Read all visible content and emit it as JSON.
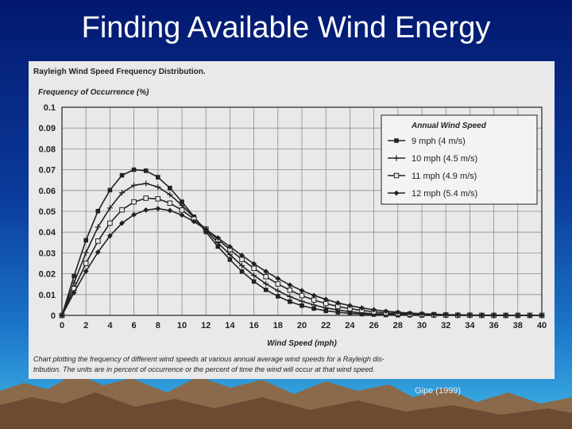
{
  "slide": {
    "title": "Finding Available Wind Energy",
    "caption": "Gipe (1999)"
  },
  "colors": {
    "background_top": "#03186e",
    "background_bottom": "#3fb6e6",
    "paper": "#e9e9e9",
    "ink": "#222222"
  },
  "chart_data": {
    "type": "line",
    "title": "Rayleigh Wind Speed Frequency Distribution.",
    "ylabel": "Frequency of Occurrence (%)",
    "xlabel": "Wind Speed (mph)",
    "xlim": [
      0,
      40
    ],
    "ylim": [
      0,
      0.1
    ],
    "grid": true,
    "x_ticks": [
      "0",
      "2",
      "4",
      "6",
      "8",
      "10",
      "12",
      "14",
      "16",
      "18",
      "20",
      "22",
      "24",
      "26",
      "28",
      "30",
      "32",
      "34",
      "36",
      "38",
      "40"
    ],
    "y_ticks": [
      "0",
      "0.01",
      "0.02",
      "0.03",
      "0.04",
      "0.05",
      "0.06",
      "0.07",
      "0.08",
      "0.09",
      "0.1"
    ],
    "legend_title": "Annual Wind Speed",
    "legend_position": "top-right",
    "footnote_line1": "Chart plotting the frequency of different wind speeds at various annual average wind speeds for a Rayleigh dis-",
    "footnote_line2": "tribution. The units are in percent of occurrence or the percent of time the wind will occur at that wind speed.",
    "x": [
      0,
      1,
      2,
      3,
      4,
      5,
      6,
      7,
      8,
      9,
      10,
      11,
      12,
      13,
      14,
      15,
      16,
      17,
      18,
      19,
      20,
      21,
      22,
      23,
      24,
      25,
      26,
      27,
      28,
      29,
      30,
      31,
      32,
      33,
      34,
      35,
      36,
      37,
      38,
      39,
      40
    ],
    "series": [
      {
        "name": "9 mph (4 m/s)",
        "marker": "square-filled",
        "values": [
          0,
          0.0189,
          0.0361,
          0.0501,
          0.0602,
          0.0673,
          0.07,
          0.0695,
          0.0664,
          0.0612,
          0.0546,
          0.0474,
          0.0401,
          0.0331,
          0.0268,
          0.0211,
          0.0163,
          0.0123,
          0.0092,
          0.0066,
          0.0047,
          0.0033,
          0.0022,
          0.0015,
          0.001,
          0.0006,
          0.0004,
          0.0002,
          0.0001,
          0.0001,
          0,
          0,
          0,
          0,
          0,
          0,
          0,
          0,
          0,
          0,
          0
        ]
      },
      {
        "name": "10 mph (4.5 m/s)",
        "marker": "plus",
        "values": [
          0,
          0.0156,
          0.0301,
          0.0424,
          0.0516,
          0.0589,
          0.0625,
          0.0634,
          0.0617,
          0.058,
          0.0529,
          0.0471,
          0.041,
          0.0349,
          0.0292,
          0.0239,
          0.0192,
          0.0152,
          0.0118,
          0.009,
          0.0068,
          0.005,
          0.0036,
          0.0026,
          0.0018,
          0.0012,
          0.0008,
          0.0006,
          0.0004,
          0.0002,
          0.0001,
          0.0001,
          0.0001,
          0,
          0,
          0,
          0,
          0,
          0,
          0,
          0
        ]
      },
      {
        "name": "11 mph (4.9 m/s)",
        "marker": "square-open",
        "values": [
          0,
          0.0129,
          0.025,
          0.0357,
          0.0443,
          0.0507,
          0.0545,
          0.0563,
          0.056,
          0.0539,
          0.0506,
          0.0463,
          0.0415,
          0.0365,
          0.0316,
          0.0269,
          0.0226,
          0.0186,
          0.0151,
          0.0121,
          0.0095,
          0.0074,
          0.0057,
          0.0043,
          0.0032,
          0.0024,
          0.0017,
          0.0012,
          0.0009,
          0.0006,
          0.0004,
          0.0003,
          0.0002,
          0.0001,
          0.0001,
          0,
          0,
          0,
          0,
          0,
          0
        ]
      },
      {
        "name": "12 mph (5.4 m/s)",
        "marker": "diamond",
        "values": [
          0,
          0.0109,
          0.0212,
          0.0304,
          0.0382,
          0.0443,
          0.0484,
          0.0506,
          0.0513,
          0.0504,
          0.0482,
          0.0451,
          0.0413,
          0.0372,
          0.033,
          0.0288,
          0.0248,
          0.0211,
          0.0177,
          0.0146,
          0.0119,
          0.0096,
          0.0077,
          0.006,
          0.0047,
          0.0036,
          0.0027,
          0.002,
          0.0015,
          0.0011,
          0.0008,
          0.0006,
          0.0004,
          0.0003,
          0.0002,
          0.0001,
          0.0001,
          0.0001,
          0,
          0,
          0
        ]
      }
    ]
  }
}
